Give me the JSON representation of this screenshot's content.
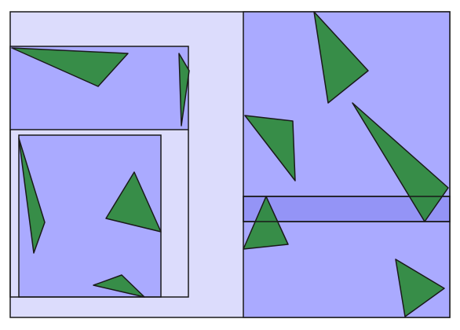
{
  "diagram": {
    "kind": "rectangle partition with triangles",
    "colors": {
      "background": "#ffffff",
      "outer_region": "#dcdcfc",
      "inner_region": "#aaaaff",
      "overlap_band": "#9494f6",
      "triangle_fill": "#2e8b3a",
      "triangle_opacity": 0.93,
      "stroke": "#1a1a1a"
    },
    "counts": {
      "triangles": 10,
      "bounding_rectangles": 5
    }
  }
}
